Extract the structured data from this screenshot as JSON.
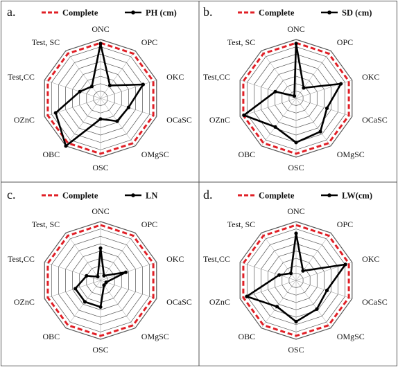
{
  "chart_data": [
    {
      "panel": "a.",
      "type": "radar",
      "categories": [
        "ONC",
        "OPC",
        "OKC",
        "OCaSC",
        "OMgSC",
        "OSC",
        "OBC",
        "OZnC",
        "Test,CC",
        "Test, SC"
      ],
      "rlim": [
        0,
        1
      ],
      "rings": 8,
      "grid": true,
      "legend_position": "top",
      "series": [
        {
          "name": "Complete",
          "values": [
            1,
            1,
            1,
            1,
            1,
            1,
            1,
            1,
            1,
            1
          ],
          "color": "#e01f26",
          "style": "dashed"
        },
        {
          "name": "PH (cm)",
          "values": [
            0.93,
            0.27,
            0.76,
            0.5,
            0.48,
            0.35,
            1.0,
            0.8,
            0.37,
            0.25
          ],
          "color": "#000000",
          "style": "solid-with-markers"
        }
      ]
    },
    {
      "panel": "b.",
      "type": "radar",
      "categories": [
        "ONC",
        "OPC",
        "OKC",
        "OCaSC",
        "OMgSC",
        "OSC",
        "OBC",
        "OZnC",
        "Test,CC",
        "Test, SC"
      ],
      "rlim": [
        0,
        1
      ],
      "rings": 8,
      "grid": true,
      "legend_position": "top",
      "series": [
        {
          "name": "Complete",
          "values": [
            1,
            1,
            1,
            1,
            1,
            1,
            1,
            1,
            1,
            1
          ],
          "color": "#e01f26",
          "style": "dashed"
        },
        {
          "name": "SD (cm)",
          "values": [
            0.93,
            0.22,
            0.8,
            0.55,
            0.7,
            0.75,
            0.6,
            0.93,
            0.37,
            0.05
          ],
          "color": "#000000",
          "style": "solid-with-markers"
        }
      ]
    },
    {
      "panel": "c.",
      "type": "radar",
      "categories": [
        "ONC",
        "OPC",
        "OKC",
        "OCaSC",
        "OMgSC",
        "OSC",
        "OBC",
        "OZnC",
        "Test,CC",
        "Test, SC"
      ],
      "rlim": [
        0,
        1
      ],
      "rings": 8,
      "grid": true,
      "legend_position": "top",
      "series": [
        {
          "name": "Complete",
          "values": [
            1,
            1,
            1,
            1,
            1,
            1,
            1,
            1,
            1,
            1
          ],
          "color": "#e01f26",
          "style": "dashed"
        },
        {
          "name": "LN",
          "values": [
            0.55,
            0.1,
            0.45,
            0.1,
            0.1,
            0.45,
            0.45,
            0.45,
            0.25,
            0.08
          ],
          "color": "#000000",
          "style": "solid-with-markers"
        }
      ]
    },
    {
      "panel": "d.",
      "type": "radar",
      "categories": [
        "ONC",
        "OPC",
        "OKC",
        "OCaSC",
        "OMgSC",
        "OSC",
        "OBC",
        "OZnC",
        "Test,CC",
        "Test, SC"
      ],
      "rlim": [
        0,
        1
      ],
      "rings": 8,
      "grid": true,
      "legend_position": "top",
      "series": [
        {
          "name": "Complete",
          "values": [
            1,
            1,
            1,
            1,
            1,
            1,
            1,
            1,
            1,
            1
          ],
          "color": "#e01f26",
          "style": "dashed"
        },
        {
          "name": "LW(cm)",
          "values": [
            0.8,
            0.2,
            0.88,
            0.55,
            0.6,
            0.7,
            0.55,
            0.88,
            0.3,
            0.15
          ],
          "color": "#000000",
          "style": "solid-with-markers"
        }
      ]
    }
  ]
}
